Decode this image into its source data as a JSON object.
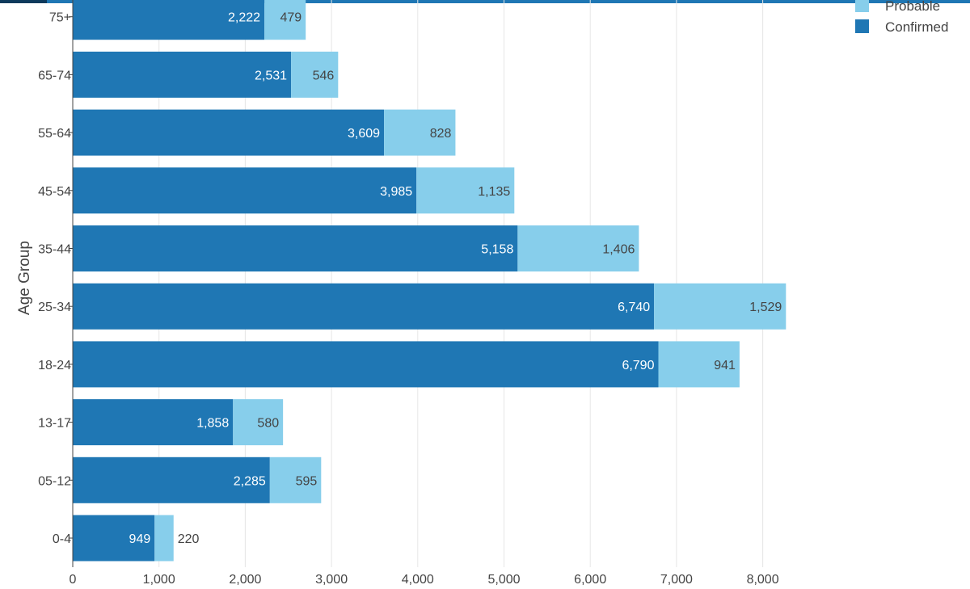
{
  "chart_data": {
    "type": "bar",
    "orientation": "horizontal",
    "stacked": true,
    "ylabel": "Age Group",
    "xlabel": "",
    "categories": [
      "0-4",
      "05-12",
      "13-17",
      "18-24",
      "25-34",
      "35-44",
      "45-54",
      "55-64",
      "65-74",
      "75+"
    ],
    "series": [
      {
        "name": "Confirmed",
        "color": "#1f77b4",
        "values": [
          949,
          2285,
          1858,
          6790,
          6740,
          5158,
          3985,
          3609,
          2531,
          2222
        ],
        "labels": [
          "949",
          "2,285",
          "1,858",
          "6,790",
          "6,740",
          "5,158",
          "3,985",
          "3,609",
          "2,531",
          "2,222"
        ]
      },
      {
        "name": "Probable",
        "color": "#87ceeb",
        "values": [
          220,
          595,
          580,
          941,
          1529,
          1406,
          1135,
          828,
          546,
          479
        ],
        "labels": [
          "220",
          "595",
          "580",
          "941",
          "1,529",
          "1,406",
          "1,135",
          "828",
          "546",
          "479"
        ]
      }
    ],
    "xlim": [
      0,
      8400
    ],
    "xticks": [
      0,
      1000,
      2000,
      3000,
      4000,
      5000,
      6000,
      7000,
      8000
    ],
    "xtick_labels": [
      "0",
      "1,000",
      "2,000",
      "3,000",
      "4,000",
      "5,000",
      "6,000",
      "7,000",
      "8,000"
    ],
    "grid": true,
    "legend": {
      "placement": "top-right",
      "items": [
        "Probable",
        "Confirmed"
      ]
    }
  }
}
